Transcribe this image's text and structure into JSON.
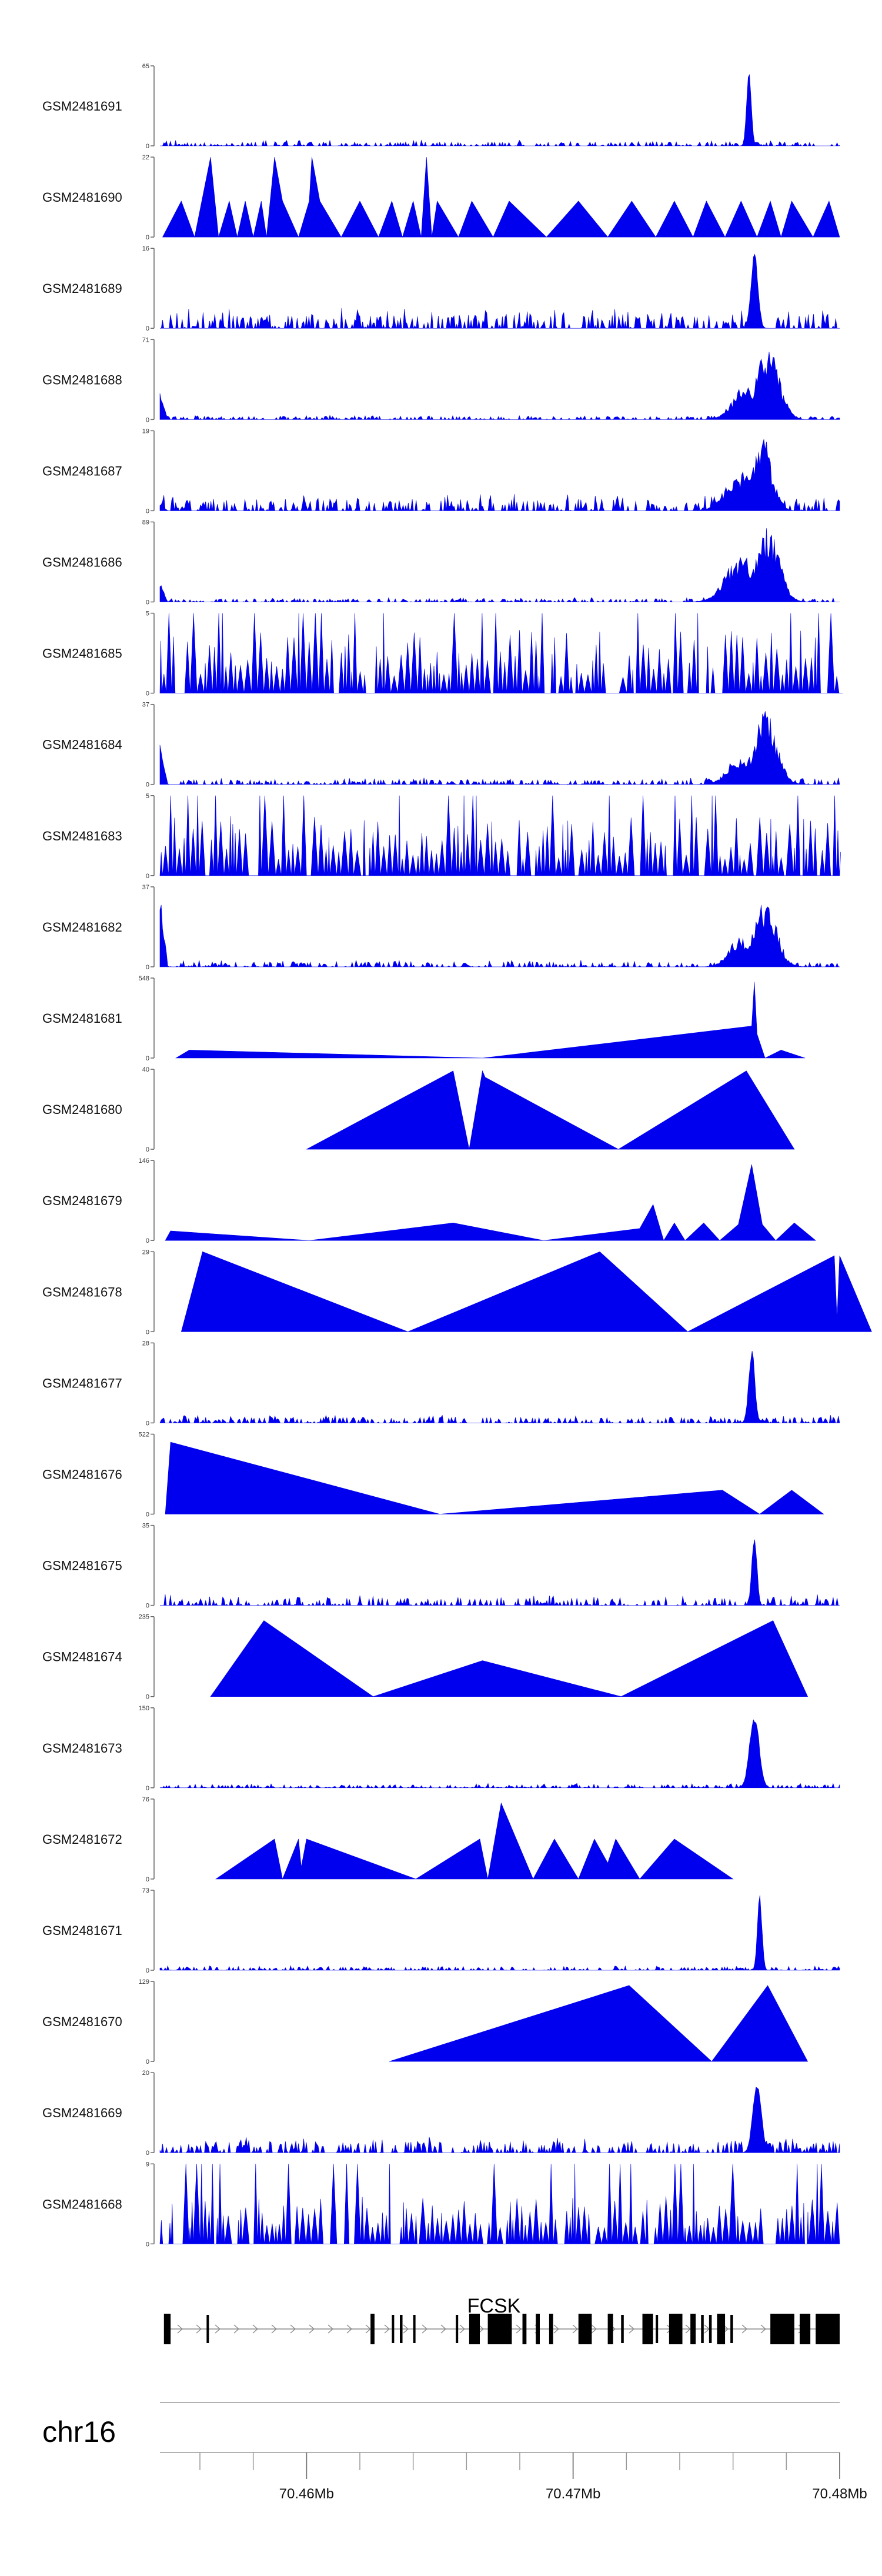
{
  "chart_data": {
    "type": "area",
    "title": "",
    "chromosome": "chr16",
    "gene": "FCSK",
    "xlim_mb": [
      70.4545,
      70.48
    ],
    "x_ticks_mb": [
      70.46,
      70.47,
      70.48
    ],
    "x_tick_labels": [
      "70.46Mb",
      "70.47Mb",
      "70.48Mb"
    ],
    "fill_color": "#0000ee",
    "tracks": [
      {
        "name": "GSM2481691",
        "ymax": 65,
        "ymax_label": "65",
        "ymin_label": "0",
        "style": "peak",
        "noise": 0.05,
        "peak_x": 70.4766,
        "peak_h": 1.0,
        "peak_w": 0.00012
      },
      {
        "name": "GSM2481690",
        "ymax": 22,
        "ymax_label": "22",
        "ymin_label": "0",
        "style": "sparse",
        "points": [
          [
            70.4546,
            0.0
          ],
          [
            70.4553,
            0.45
          ],
          [
            70.4558,
            0.0
          ],
          [
            70.4564,
            1.0
          ],
          [
            70.4567,
            0.0
          ],
          [
            70.4571,
            0.45
          ],
          [
            70.4574,
            0.0
          ],
          [
            70.4577,
            0.45
          ],
          [
            70.458,
            0.0
          ],
          [
            70.4583,
            0.45
          ],
          [
            70.4585,
            0.0
          ],
          [
            70.4588,
            1.0
          ],
          [
            70.4591,
            0.45
          ],
          [
            70.4597,
            0.0
          ],
          [
            70.4601,
            0.45
          ],
          [
            70.4602,
            1.0
          ],
          [
            70.4605,
            0.45
          ],
          [
            70.4613,
            0.0
          ],
          [
            70.462,
            0.45
          ],
          [
            70.4627,
            0.0
          ],
          [
            70.4632,
            0.45
          ],
          [
            70.4636,
            0.0
          ],
          [
            70.464,
            0.45
          ],
          [
            70.4643,
            0.0
          ],
          [
            70.4645,
            1.0
          ],
          [
            70.4647,
            0.0
          ],
          [
            70.4649,
            0.45
          ],
          [
            70.4657,
            0.0
          ],
          [
            70.4662,
            0.45
          ],
          [
            70.467,
            0.0
          ],
          [
            70.4676,
            0.45
          ],
          [
            70.469,
            0.0
          ],
          [
            70.4702,
            0.45
          ],
          [
            70.4713,
            0.0
          ],
          [
            70.4722,
            0.45
          ],
          [
            70.4731,
            0.0
          ],
          [
            70.4738,
            0.45
          ],
          [
            70.4745,
            0.0
          ],
          [
            70.475,
            0.45
          ],
          [
            70.4757,
            0.0
          ],
          [
            70.4763,
            0.45
          ],
          [
            70.4769,
            0.0
          ],
          [
            70.4774,
            0.45
          ],
          [
            70.4778,
            0.0
          ],
          [
            70.4782,
            0.45
          ],
          [
            70.479,
            0.0
          ],
          [
            70.4796,
            0.45
          ],
          [
            70.48,
            0.0
          ]
        ]
      },
      {
        "name": "GSM2481689",
        "ymax": 16,
        "ymax_label": "16",
        "ymin_label": "0",
        "style": "peak",
        "noise": 0.18,
        "peak_x": 70.4768,
        "peak_h": 1.0,
        "peak_w": 0.00018
      },
      {
        "name": "GSM2481688",
        "ymax": 71,
        "ymax_label": "71",
        "ymin_label": "0",
        "style": "broad",
        "noise": 0.04,
        "left_h": 0.35,
        "bumps": [
          [
            70.4765,
            0.45,
            0.0007
          ],
          [
            70.4773,
            0.95,
            0.0006
          ]
        ]
      },
      {
        "name": "GSM2481687",
        "ymax": 19,
        "ymax_label": "19",
        "ymin_label": "0",
        "style": "broad",
        "noise": 0.15,
        "left_h": 0.1,
        "bumps": [
          [
            70.4763,
            0.5,
            0.0008
          ],
          [
            70.4771,
            0.95,
            0.0005
          ]
        ]
      },
      {
        "name": "GSM2481686",
        "ymax": 89,
        "ymax_label": "89",
        "ymin_label": "0",
        "style": "broad",
        "noise": 0.04,
        "left_h": 0.25,
        "bumps": [
          [
            70.4763,
            0.6,
            0.0008
          ],
          [
            70.4773,
            0.95,
            0.0006
          ]
        ]
      },
      {
        "name": "GSM2481685",
        "ymax": 5,
        "ymax_label": "5",
        "ymin_label": "0",
        "style": "spiky",
        "level": 0.6
      },
      {
        "name": "GSM2481684",
        "ymax": 37,
        "ymax_label": "37",
        "ymin_label": "0",
        "style": "broad",
        "noise": 0.06,
        "left_h": 0.5,
        "bumps": [
          [
            70.4762,
            0.35,
            0.0006
          ],
          [
            70.4772,
            0.95,
            0.0006
          ]
        ]
      },
      {
        "name": "GSM2481683",
        "ymax": 5,
        "ymax_label": "5",
        "ymin_label": "0",
        "style": "spiky",
        "level": 0.55
      },
      {
        "name": "GSM2481682",
        "ymax": 37,
        "ymax_label": "37",
        "ymin_label": "0",
        "style": "broad",
        "noise": 0.06,
        "left_h": 0.95,
        "bumps": [
          [
            70.4763,
            0.4,
            0.0006
          ],
          [
            70.4772,
            0.85,
            0.0006
          ]
        ]
      },
      {
        "name": "GSM2481681",
        "ymax": 548,
        "ymax_label": "548",
        "ymin_label": "0",
        "style": "sparse",
        "points": [
          [
            70.4551,
            0.0
          ],
          [
            70.4556,
            0.1
          ],
          [
            70.4666,
            0.0
          ],
          [
            70.4767,
            0.4
          ],
          [
            70.4768,
            0.95
          ],
          [
            70.4769,
            0.3
          ],
          [
            70.4772,
            0.0
          ],
          [
            70.4778,
            0.1
          ],
          [
            70.4787,
            0.0
          ]
        ]
      },
      {
        "name": "GSM2481680",
        "ymax": 40,
        "ymax_label": "40",
        "ymin_label": "0",
        "style": "sparse",
        "points": [
          [
            70.46,
            0.0
          ],
          [
            70.4655,
            0.98
          ],
          [
            70.4661,
            0.0
          ],
          [
            70.4666,
            0.98
          ],
          [
            70.4667,
            0.9
          ],
          [
            70.4717,
            0.0
          ],
          [
            70.4765,
            0.98
          ],
          [
            70.4783,
            0.0
          ]
        ]
      },
      {
        "name": "GSM2481679",
        "ymax": 146,
        "ymax_label": "146",
        "ymin_label": "0",
        "style": "sparse",
        "points": [
          [
            70.4547,
            0.0
          ],
          [
            70.4549,
            0.12
          ],
          [
            70.4601,
            0.0
          ],
          [
            70.4655,
            0.22
          ],
          [
            70.4689,
            0.0
          ],
          [
            70.4725,
            0.15
          ],
          [
            70.473,
            0.45
          ],
          [
            70.4734,
            0.0
          ],
          [
            70.4738,
            0.22
          ],
          [
            70.4742,
            0.0
          ],
          [
            70.4749,
            0.22
          ],
          [
            70.4755,
            0.0
          ],
          [
            70.4762,
            0.2
          ],
          [
            70.4767,
            0.95
          ],
          [
            70.4771,
            0.2
          ],
          [
            70.4776,
            0.0
          ],
          [
            70.4783,
            0.22
          ],
          [
            70.4791,
            0.0
          ]
        ]
      },
      {
        "name": "GSM2481678",
        "ymax": 29,
        "ymax_label": "29",
        "ymin_label": "0",
        "style": "sparse",
        "points": [
          [
            70.4553,
            0.0
          ],
          [
            70.4561,
            1.0
          ],
          [
            70.4638,
            0.0
          ],
          [
            70.471,
            1.0
          ],
          [
            70.4743,
            0.0
          ],
          [
            70.4798,
            0.95
          ],
          [
            70.4799,
            0.15
          ],
          [
            70.48,
            0.95
          ],
          [
            70.4812,
            0.0
          ]
        ]
      },
      {
        "name": "GSM2481677",
        "ymax": 28,
        "ymax_label": "28",
        "ymin_label": "0",
        "style": "peak",
        "noise": 0.07,
        "peak_x": 70.4767,
        "peak_h": 0.95,
        "peak_w": 0.00016
      },
      {
        "name": "GSM2481676",
        "ymax": 522,
        "ymax_label": "522",
        "ymin_label": "0",
        "style": "sparse",
        "points": [
          [
            70.4547,
            0.0
          ],
          [
            70.4549,
            0.9
          ],
          [
            70.465,
            0.0
          ],
          [
            70.4756,
            0.3
          ],
          [
            70.477,
            0.0
          ],
          [
            70.4782,
            0.3
          ],
          [
            70.4794,
            0.0
          ]
        ]
      },
      {
        "name": "GSM2481675",
        "ymax": 35,
        "ymax_label": "35",
        "ymin_label": "0",
        "style": "peak",
        "noise": 0.1,
        "peak_x": 70.4768,
        "peak_h": 0.95,
        "peak_w": 0.00013
      },
      {
        "name": "GSM2481674",
        "ymax": 235,
        "ymax_label": "235",
        "ymin_label": "0",
        "style": "sparse",
        "points": [
          [
            70.4564,
            0.0
          ],
          [
            70.4584,
            0.95
          ],
          [
            70.4625,
            0.0
          ],
          [
            70.4666,
            0.45
          ],
          [
            70.4718,
            0.0
          ],
          [
            70.4775,
            0.95
          ],
          [
            70.4788,
            0.0
          ]
        ]
      },
      {
        "name": "GSM2481673",
        "ymax": 150,
        "ymax_label": "150",
        "ymin_label": "0",
        "style": "peak",
        "noise": 0.04,
        "peak_x": 70.4768,
        "peak_h": 0.95,
        "peak_w": 0.00025
      },
      {
        "name": "GSM2481672",
        "ymax": 76,
        "ymax_label": "76",
        "ymin_label": "0",
        "style": "sparse",
        "points": [
          [
            70.4566,
            0.0
          ],
          [
            70.4588,
            0.5
          ],
          [
            70.4591,
            0.0
          ],
          [
            70.4597,
            0.5
          ],
          [
            70.4598,
            0.15
          ],
          [
            70.46,
            0.5
          ],
          [
            70.4641,
            0.0
          ],
          [
            70.4665,
            0.5
          ],
          [
            70.4668,
            0.0
          ],
          [
            70.4673,
            0.95
          ],
          [
            70.4685,
            0.0
          ],
          [
            70.4693,
            0.5
          ],
          [
            70.4702,
            0.0
          ],
          [
            70.4708,
            0.5
          ],
          [
            70.4713,
            0.2
          ],
          [
            70.4716,
            0.5
          ],
          [
            70.4725,
            0.0
          ],
          [
            70.4738,
            0.5
          ],
          [
            70.476,
            0.0
          ]
        ]
      },
      {
        "name": "GSM2481671",
        "ymax": 73,
        "ymax_label": "73",
        "ymin_label": "0",
        "style": "peak",
        "noise": 0.04,
        "peak_x": 70.477,
        "peak_h": 0.95,
        "peak_w": 0.00012
      },
      {
        "name": "GSM2481670",
        "ymax": 129,
        "ymax_label": "129",
        "ymin_label": "0",
        "style": "sparse",
        "points": [
          [
            70.4631,
            0.0
          ],
          [
            70.4721,
            0.95
          ],
          [
            70.4752,
            0.0
          ],
          [
            70.4773,
            0.95
          ],
          [
            70.4788,
            0.0
          ]
        ]
      },
      {
        "name": "GSM2481669",
        "ymax": 20,
        "ymax_label": "20",
        "ymin_label": "0",
        "style": "peak",
        "noise": 0.14,
        "peak_x": 70.4769,
        "peak_h": 0.95,
        "peak_w": 0.00022
      },
      {
        "name": "GSM2481668",
        "ymax": 9,
        "ymax_label": "9",
        "ymin_label": "0",
        "style": "spiky",
        "level": 0.4
      }
    ],
    "gene_model": {
      "strand": "+",
      "exons_mb": [
        [
          70.45465,
          70.4549
        ],
        [
          70.45625,
          70.4563
        ],
        [
          70.4624,
          70.46255
        ],
        [
          70.4632,
          70.46325
        ],
        [
          70.4635,
          70.4636
        ],
        [
          70.464,
          70.46405
        ],
        [
          70.4656,
          70.46565
        ],
        [
          70.4661,
          70.4665
        ],
        [
          70.4668,
          70.4677
        ],
        [
          70.4681,
          70.46825
        ],
        [
          70.4686,
          70.46875
        ],
        [
          70.4691,
          70.46925
        ],
        [
          70.4702,
          70.4707
        ],
        [
          70.4713,
          70.4715
        ],
        [
          70.4718,
          70.4719
        ],
        [
          70.4726,
          70.473
        ],
        [
          70.4731,
          70.47315
        ],
        [
          70.4736,
          70.4741
        ],
        [
          70.4744,
          70.4746
        ],
        [
          70.4748,
          70.4749
        ],
        [
          70.4751,
          70.4752
        ],
        [
          70.4754,
          70.4757
        ],
        [
          70.4759,
          70.476
        ],
        [
          70.4774,
          70.4783
        ],
        [
          70.4785,
          70.4789
        ],
        [
          70.4791,
          70.48
        ]
      ]
    }
  }
}
